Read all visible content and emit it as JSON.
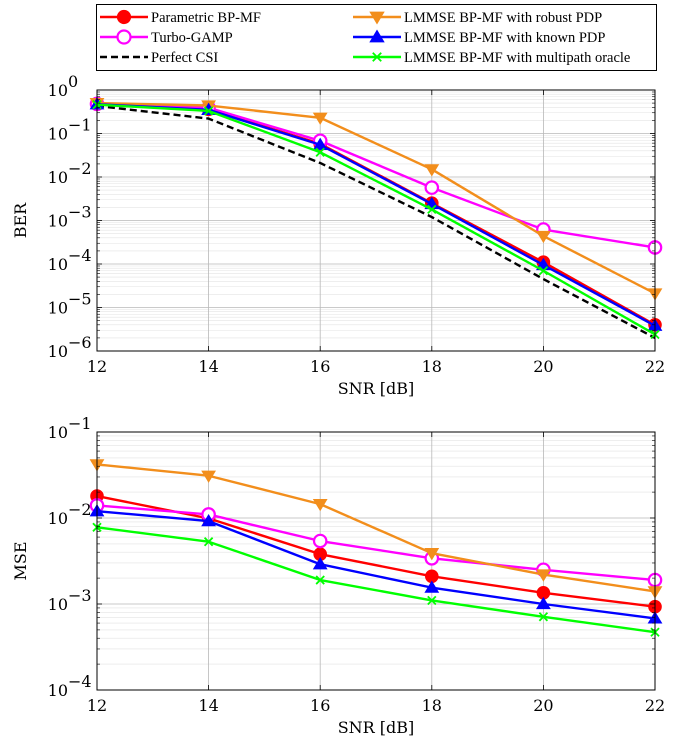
{
  "legend": {
    "placement": "top",
    "columns": 2
  },
  "series_styles": [
    {
      "name": "Parametric BP-MF",
      "color": "#ff0000",
      "marker": "circle-filled",
      "dash": "solid"
    },
    {
      "name": "Turbo-GAMP",
      "color": "#ff00ff",
      "marker": "circle-open",
      "dash": "solid"
    },
    {
      "name": "Perfect CSI",
      "color": "#000000",
      "marker": "none",
      "dash": "dashed"
    },
    {
      "name": "LMMSE BP-MF with robust PDP",
      "color": "#f28e1c",
      "marker": "triangle-down",
      "dash": "solid"
    },
    {
      "name": "LMMSE BP-MF with known PDP",
      "color": "#0000ff",
      "marker": "triangle-up",
      "dash": "solid"
    },
    {
      "name": "LMMSE BP-MF with multipath oracle",
      "color": "#00ff00",
      "marker": "x",
      "dash": "solid"
    }
  ],
  "chart_data": [
    {
      "type": "line",
      "xlabel": "SNR [dB]",
      "ylabel": "BER",
      "yscale": "log",
      "xlim": [
        12,
        22
      ],
      "ylim": [
        1e-06,
        1
      ],
      "xticks": [
        12,
        14,
        16,
        18,
        20,
        22
      ],
      "yticks": [
        {
          "value": 1e-06,
          "exp": "−6"
        },
        {
          "value": 1e-05,
          "exp": "−5"
        },
        {
          "value": 0.0001,
          "exp": "−4"
        },
        {
          "value": 0.001,
          "exp": "−3"
        },
        {
          "value": 0.01,
          "exp": "−2"
        },
        {
          "value": 0.1,
          "exp": "−1"
        },
        {
          "value": 1,
          "exp": "0"
        }
      ],
      "grid": true,
      "x": [
        12,
        14,
        16,
        18,
        20,
        22
      ],
      "series": [
        {
          "name": "Parametric BP-MF",
          "values": [
            0.47,
            0.36,
            0.058,
            0.0025,
            0.00011,
            4e-06
          ]
        },
        {
          "name": "Turbo-GAMP",
          "values": [
            0.48,
            0.39,
            0.068,
            0.0057,
            0.00062,
            0.00024
          ]
        },
        {
          "name": "Perfect CSI",
          "values": [
            0.43,
            0.22,
            0.021,
            0.0012,
            4.5e-05,
            2e-06
          ]
        },
        {
          "name": "LMMSE BP-MF with robust PDP",
          "values": [
            0.5,
            0.44,
            0.23,
            0.015,
            0.00044,
            2.1e-05
          ]
        },
        {
          "name": "LMMSE BP-MF with known PDP",
          "values": [
            0.47,
            0.35,
            0.055,
            0.0024,
            9.5e-05,
            3.8e-06
          ]
        },
        {
          "name": "LMMSE BP-MF with multipath oracle",
          "values": [
            0.46,
            0.33,
            0.037,
            0.0018,
            7e-05,
            2.4e-06
          ]
        }
      ]
    },
    {
      "type": "line",
      "xlabel": "SNR [dB]",
      "ylabel": "MSE",
      "yscale": "log",
      "xlim": [
        12,
        22
      ],
      "ylim": [
        0.0001,
        0.1
      ],
      "xticks": [
        12,
        14,
        16,
        18,
        20,
        22
      ],
      "yticks": [
        {
          "value": 0.0001,
          "exp": "−4"
        },
        {
          "value": 0.001,
          "exp": "−3"
        },
        {
          "value": 0.01,
          "exp": "−2"
        },
        {
          "value": 0.1,
          "exp": "−1"
        }
      ],
      "grid": true,
      "x": [
        12,
        14,
        16,
        18,
        20,
        22
      ],
      "series": [
        {
          "name": "Parametric BP-MF",
          "values": [
            0.018,
            0.0099,
            0.0038,
            0.0021,
            0.00135,
            0.00093
          ]
        },
        {
          "name": "Turbo-GAMP",
          "values": [
            0.014,
            0.011,
            0.0054,
            0.0034,
            0.0025,
            0.0019
          ]
        },
        {
          "name": "LMMSE BP-MF with robust PDP",
          "values": [
            0.042,
            0.031,
            0.0145,
            0.0039,
            0.0022,
            0.0014
          ]
        },
        {
          "name": "LMMSE BP-MF with known PDP",
          "values": [
            0.012,
            0.0092,
            0.0029,
            0.00155,
            0.001,
            0.00068
          ]
        },
        {
          "name": "LMMSE BP-MF with multipath oracle",
          "values": [
            0.0078,
            0.0053,
            0.0019,
            0.0011,
            0.00071,
            0.00047
          ]
        }
      ]
    }
  ]
}
